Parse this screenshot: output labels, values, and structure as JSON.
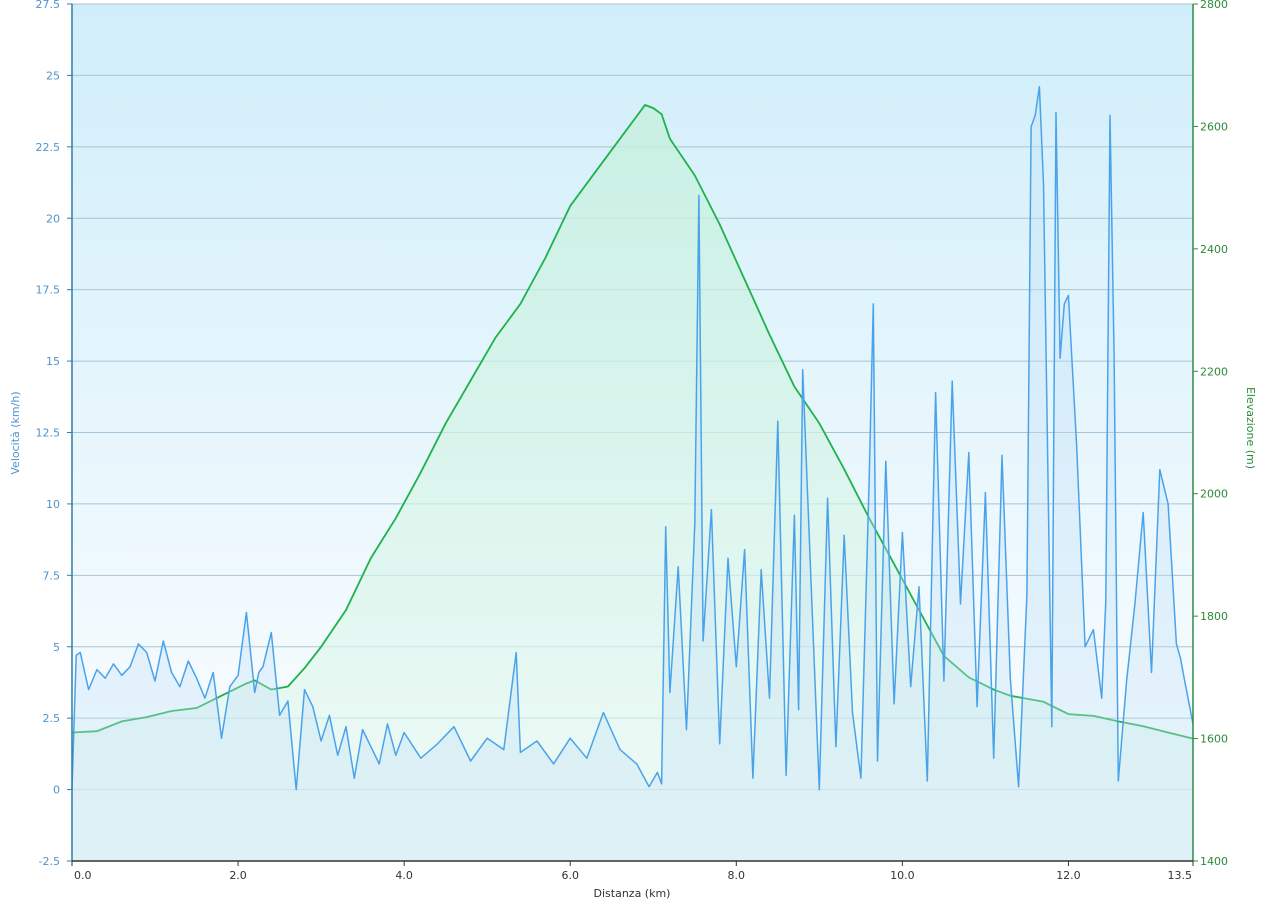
{
  "colors": {
    "speed": "#4aa3ea",
    "elevation": "#1fb14a",
    "grid": "#a9c4d4",
    "left_axis_text": "#4f93cf",
    "right_axis_text": "#2d8a3a"
  },
  "chart_data": {
    "type": "line",
    "title": "",
    "xlabel": "Distanza  (km)",
    "ylabel": "Velocità (km/h)",
    "y2label": "Elevazione (m)",
    "xlim": [
      0,
      13.5
    ],
    "ylim": [
      -2.5,
      27.5
    ],
    "y2lim": [
      1400,
      2800
    ],
    "grid": true,
    "legend": "none",
    "x_ticks": [
      "0.0",
      "2.0",
      "4.0",
      "6.0",
      "8.0",
      "10.0",
      "12.0",
      "13.5"
    ],
    "y_ticks": [
      "-2.5",
      "0",
      "2.5",
      "5",
      "7.5",
      "10",
      "12.5",
      "15",
      "17.5",
      "20",
      "22.5",
      "25",
      "27.5"
    ],
    "y2_ticks": [
      "1400",
      "1600",
      "1800",
      "2000",
      "2200",
      "2400",
      "2600",
      "2800"
    ],
    "series": [
      {
        "axis": "left",
        "x": [
          0.0,
          0.05,
          0.1,
          0.2,
          0.3,
          0.4,
          0.5,
          0.6,
          0.7,
          0.8,
          0.9,
          1.0,
          1.1,
          1.2,
          1.3,
          1.4,
          1.5,
          1.6,
          1.7,
          1.8,
          1.9,
          2.0,
          2.1,
          2.2,
          2.25,
          2.3,
          2.4,
          2.5,
          2.6,
          2.7,
          2.8,
          2.9,
          3.0,
          3.1,
          3.2,
          3.3,
          3.4,
          3.5,
          3.6,
          3.7,
          3.8,
          3.9,
          4.0,
          4.2,
          4.4,
          4.6,
          4.8,
          5.0,
          5.2,
          5.35,
          5.4,
          5.6,
          5.8,
          6.0,
          6.2,
          6.4,
          6.6,
          6.8,
          6.95,
          7.05,
          7.1,
          7.15,
          7.2,
          7.3,
          7.4,
          7.5,
          7.55,
          7.6,
          7.7,
          7.8,
          7.9,
          8.0,
          8.1,
          8.2,
          8.3,
          8.4,
          8.5,
          8.6,
          8.7,
          8.75,
          8.8,
          8.9,
          9.0,
          9.1,
          9.2,
          9.3,
          9.4,
          9.5,
          9.6,
          9.65,
          9.7,
          9.8,
          9.9,
          10.0,
          10.1,
          10.2,
          10.3,
          10.4,
          10.5,
          10.6,
          10.7,
          10.8,
          10.9,
          11.0,
          11.1,
          11.2,
          11.3,
          11.4,
          11.5,
          11.55,
          11.6,
          11.65,
          11.7,
          11.8,
          11.85,
          11.9,
          11.95,
          12.0,
          12.1,
          12.2,
          12.3,
          12.4,
          12.45,
          12.5,
          12.55,
          12.6,
          12.7,
          12.8,
          12.9,
          13.0,
          13.1,
          13.2,
          13.3,
          13.35,
          13.4,
          13.5
        ],
        "values": [
          0.0,
          4.7,
          4.8,
          3.5,
          4.2,
          3.9,
          4.4,
          4.0,
          4.3,
          5.1,
          4.8,
          3.8,
          5.2,
          4.1,
          3.6,
          4.5,
          3.9,
          3.2,
          4.1,
          1.8,
          3.6,
          4.0,
          6.2,
          3.4,
          4.1,
          4.3,
          5.5,
          2.6,
          3.1,
          0.0,
          3.5,
          2.9,
          1.7,
          2.6,
          1.2,
          2.2,
          0.4,
          2.1,
          1.5,
          0.9,
          2.3,
          1.2,
          2.0,
          1.1,
          1.6,
          2.2,
          1.0,
          1.8,
          1.4,
          4.8,
          1.3,
          1.7,
          0.9,
          1.8,
          1.1,
          2.7,
          1.4,
          0.9,
          0.1,
          0.6,
          0.2,
          9.2,
          3.4,
          7.8,
          2.1,
          9.3,
          20.8,
          5.2,
          9.8,
          1.6,
          8.1,
          4.3,
          8.4,
          0.4,
          7.7,
          3.2,
          12.9,
          0.5,
          9.6,
          2.8,
          14.7,
          7.3,
          0.0,
          10.2,
          1.5,
          8.9,
          2.7,
          0.4,
          10.9,
          17.0,
          1.0,
          11.5,
          3.0,
          9.0,
          3.6,
          7.1,
          0.3,
          13.9,
          3.8,
          14.3,
          6.5,
          11.8,
          2.9,
          10.4,
          1.1,
          11.7,
          3.9,
          0.1,
          6.8,
          23.2,
          23.6,
          24.6,
          21.2,
          2.2,
          23.7,
          15.1,
          17.0,
          17.3,
          12.0,
          5.0,
          5.6,
          3.2,
          6.6,
          23.6,
          15.2,
          0.3,
          3.8,
          6.5,
          9.7,
          4.1,
          11.2,
          10.0,
          5.1,
          4.6,
          3.8,
          2.3
        ]
      },
      {
        "axis": "right",
        "x": [
          0.0,
          0.3,
          0.6,
          0.9,
          1.2,
          1.5,
          1.8,
          2.1,
          2.2,
          2.4,
          2.6,
          2.8,
          3.0,
          3.3,
          3.6,
          3.9,
          4.2,
          4.5,
          4.8,
          5.1,
          5.4,
          5.7,
          6.0,
          6.3,
          6.6,
          6.9,
          7.0,
          7.1,
          7.2,
          7.5,
          7.8,
          8.1,
          8.4,
          8.7,
          9.0,
          9.3,
          9.6,
          9.9,
          10.2,
          10.5,
          10.8,
          11.1,
          11.3,
          11.5,
          11.7,
          12.0,
          12.3,
          12.6,
          12.9,
          13.2,
          13.5
        ],
        "values": [
          1610,
          1612,
          1628,
          1635,
          1645,
          1650,
          1670,
          1690,
          1695,
          1680,
          1685,
          1715,
          1750,
          1810,
          1895,
          1960,
          2035,
          2115,
          2185,
          2255,
          2310,
          2385,
          2470,
          2525,
          2580,
          2635,
          2630,
          2620,
          2580,
          2520,
          2440,
          2350,
          2260,
          2175,
          2115,
          2040,
          1960,
          1885,
          1810,
          1735,
          1700,
          1680,
          1670,
          1665,
          1660,
          1640,
          1637,
          1628,
          1620,
          1610,
          1600
        ]
      }
    ]
  }
}
